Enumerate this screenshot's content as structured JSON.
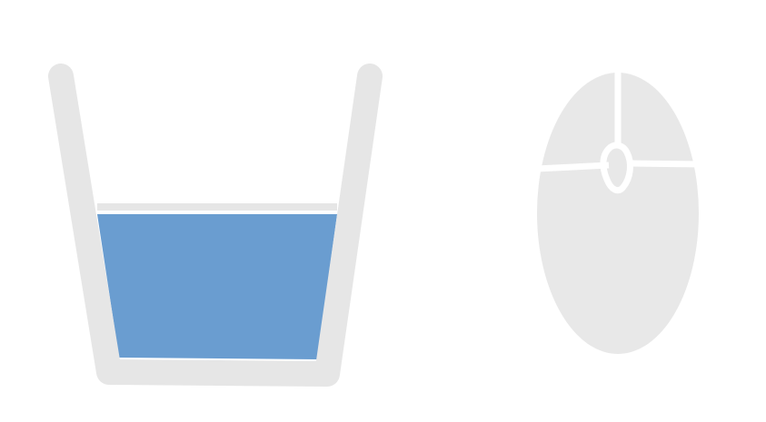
{
  "colors": {
    "background": "#ffffff",
    "outline": "#e6e6e6",
    "water": "#6a9dd0",
    "mouse": "#e8e8e8",
    "mouse_seams": "#ffffff"
  },
  "icons": {
    "cup": "cup-icon",
    "mouse": "computer-mouse-icon"
  },
  "cup": {
    "water_level": 0.57
  }
}
